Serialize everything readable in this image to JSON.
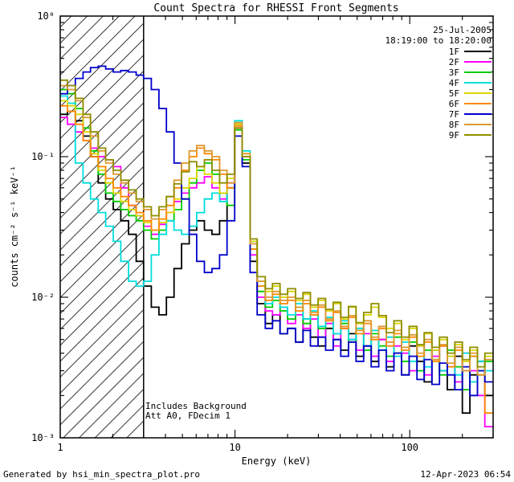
{
  "annotations": {
    "date": "25-Jul-2005",
    "time_range": "18:19:00 to 18:20:00",
    "note_line1": "Includes Background",
    "note_line2": "Att A0, FDecim 1"
  },
  "footer": {
    "left": "Generated by hsi_min_spectra_plot.pro",
    "right": "12-Apr-2023 06:54"
  },
  "chart_data": {
    "type": "line",
    "subtype": "step-histogram",
    "title": "Count Spectra for RHESSI Front Segments",
    "xlabel": "Energy (keV)",
    "ylabel": "counts cm⁻² s⁻¹ keV⁻¹",
    "xscale": "log",
    "yscale": "log",
    "xlim": [
      1,
      300
    ],
    "ylim": [
      0.001,
      1.0
    ],
    "grid": false,
    "legend_position": "top-right",
    "frame_color": "#000000",
    "xticks": [
      {
        "v": 1,
        "label": "1"
      },
      {
        "v": 10,
        "label": "10"
      },
      {
        "v": 100,
        "label": "100"
      }
    ],
    "yticks": [
      {
        "v": 0.001,
        "label": "10⁻³"
      },
      {
        "v": 0.01,
        "label": "10⁻²"
      },
      {
        "v": 0.1,
        "label": "10⁻¹"
      },
      {
        "v": 1,
        "label": "10⁰"
      }
    ],
    "excluded_region": {
      "xmin": 1,
      "xmax": 3.0,
      "style": "diagonal-hatch"
    },
    "energy_bin_edges": [
      1.0,
      1.1,
      1.22,
      1.35,
      1.49,
      1.65,
      1.82,
      2.01,
      2.22,
      2.46,
      2.72,
      3.0,
      3.32,
      3.67,
      4.05,
      4.48,
      4.95,
      5.47,
      6.04,
      6.68,
      7.38,
      8.16,
      9.01,
      9.96,
      11.0,
      12.2,
      13.4,
      14.9,
      16.4,
      18.1,
      20.0,
      22.2,
      24.5,
      27.0,
      29.9,
      33.0,
      36.5,
      40.3,
      44.6,
      49.3,
      54.5,
      60.2,
      66.5,
      73.5,
      81.2,
      89.7,
      99.2,
      110,
      121,
      134,
      148,
      164,
      181,
      200,
      221,
      244,
      269
    ],
    "series": [
      {
        "name": "1F",
        "color": "#000000",
        "values": [
          0.2,
          0.21,
          0.18,
          0.14,
          0.1,
          0.065,
          0.05,
          0.042,
          0.035,
          0.028,
          0.018,
          0.012,
          0.0085,
          0.0075,
          0.01,
          0.016,
          0.024,
          0.03,
          0.035,
          0.03,
          0.028,
          0.035,
          0.06,
          0.17,
          0.09,
          0.018,
          0.009,
          0.0065,
          0.0075,
          0.0055,
          0.006,
          0.0048,
          0.007,
          0.0052,
          0.0045,
          0.006,
          0.005,
          0.0042,
          0.0055,
          0.0038,
          0.0045,
          0.0035,
          0.005,
          0.0032,
          0.004,
          0.0028,
          0.0045,
          0.0035,
          0.0025,
          0.0042,
          0.003,
          0.0022,
          0.0038,
          0.0015,
          0.0028,
          0.0035,
          0.002
        ]
      },
      {
        "name": "2F",
        "color": "#ff00ff",
        "values": [
          0.19,
          0.17,
          0.15,
          0.13,
          0.115,
          0.1,
          0.095,
          0.085,
          0.06,
          0.045,
          0.038,
          0.032,
          0.028,
          0.033,
          0.04,
          0.048,
          0.055,
          0.06,
          0.065,
          0.072,
          0.06,
          0.05,
          0.065,
          0.16,
          0.1,
          0.02,
          0.01,
          0.008,
          0.0075,
          0.0085,
          0.0065,
          0.0075,
          0.006,
          0.007,
          0.0052,
          0.0065,
          0.0045,
          0.006,
          0.005,
          0.0042,
          0.0055,
          0.0038,
          0.005,
          0.0035,
          0.0045,
          0.004,
          0.003,
          0.0045,
          0.0028,
          0.0038,
          0.0045,
          0.0032,
          0.0025,
          0.004,
          0.003,
          0.002,
          0.0012
        ]
      },
      {
        "name": "3F",
        "color": "#00cc00",
        "values": [
          0.3,
          0.28,
          0.22,
          0.16,
          0.11,
          0.075,
          0.055,
          0.048,
          0.042,
          0.038,
          0.035,
          0.03,
          0.026,
          0.03,
          0.035,
          0.042,
          0.05,
          0.065,
          0.08,
          0.09,
          0.075,
          0.055,
          0.045,
          0.155,
          0.095,
          0.022,
          0.011,
          0.0085,
          0.0095,
          0.008,
          0.007,
          0.0085,
          0.0065,
          0.0075,
          0.006,
          0.007,
          0.0055,
          0.0065,
          0.0048,
          0.006,
          0.0042,
          0.0055,
          0.0045,
          0.0038,
          0.0052,
          0.0035,
          0.0048,
          0.003,
          0.0042,
          0.0036,
          0.0028,
          0.0042,
          0.0032,
          0.0022,
          0.0038,
          0.0028,
          0.0035
        ]
      },
      {
        "name": "4F",
        "color": "#00dede",
        "values": [
          0.27,
          0.24,
          0.09,
          0.065,
          0.05,
          0.04,
          0.032,
          0.025,
          0.018,
          0.013,
          0.012,
          0.013,
          0.02,
          0.028,
          0.035,
          0.03,
          0.028,
          0.032,
          0.04,
          0.05,
          0.055,
          0.048,
          0.06,
          0.18,
          0.11,
          0.025,
          0.012,
          0.009,
          0.01,
          0.0085,
          0.0075,
          0.009,
          0.007,
          0.008,
          0.0062,
          0.0072,
          0.0055,
          0.0068,
          0.005,
          0.006,
          0.0045,
          0.0058,
          0.0042,
          0.0052,
          0.0038,
          0.0048,
          0.0035,
          0.0045,
          0.0032,
          0.0042,
          0.003,
          0.0038,
          0.0028,
          0.004,
          0.0025,
          0.0035,
          0.003
        ]
      },
      {
        "name": "5F",
        "color": "#ddd600",
        "values": [
          0.25,
          0.23,
          0.2,
          0.15,
          0.105,
          0.08,
          0.065,
          0.055,
          0.048,
          0.042,
          0.038,
          0.034,
          0.03,
          0.034,
          0.04,
          0.05,
          0.06,
          0.07,
          0.085,
          0.075,
          0.065,
          0.055,
          0.07,
          0.17,
          0.105,
          0.025,
          0.013,
          0.011,
          0.012,
          0.01,
          0.011,
          0.0095,
          0.0105,
          0.0085,
          0.0095,
          0.008,
          0.009,
          0.007,
          0.0085,
          0.0065,
          0.0075,
          0.0085,
          0.0072,
          0.006,
          0.0065,
          0.005,
          0.006,
          0.0045,
          0.0055,
          0.0042,
          0.005,
          0.0038,
          0.0046,
          0.0035,
          0.0042,
          0.003,
          0.0038
        ]
      },
      {
        "name": "6F",
        "color": "#ff8800",
        "values": [
          0.23,
          0.21,
          0.17,
          0.13,
          0.1,
          0.085,
          0.07,
          0.06,
          0.052,
          0.045,
          0.04,
          0.035,
          0.03,
          0.036,
          0.045,
          0.06,
          0.08,
          0.1,
          0.115,
          0.105,
          0.095,
          0.075,
          0.06,
          0.165,
          0.1,
          0.022,
          0.012,
          0.0095,
          0.0105,
          0.009,
          0.0095,
          0.008,
          0.009,
          0.0075,
          0.0085,
          0.0068,
          0.0078,
          0.006,
          0.0072,
          0.0055,
          0.0065,
          0.005,
          0.006,
          0.0045,
          0.0055,
          0.0042,
          0.0052,
          0.0038,
          0.0048,
          0.0035,
          0.0045,
          0.0032,
          0.0042,
          0.003,
          0.0038,
          0.0028,
          0.0015
        ]
      },
      {
        "name": "7F",
        "color": "#0000cc",
        "values": [
          0.28,
          0.32,
          0.36,
          0.4,
          0.43,
          0.44,
          0.42,
          0.4,
          0.41,
          0.4,
          0.38,
          0.36,
          0.3,
          0.22,
          0.15,
          0.09,
          0.05,
          0.028,
          0.018,
          0.015,
          0.016,
          0.02,
          0.035,
          0.14,
          0.085,
          0.015,
          0.0075,
          0.006,
          0.0068,
          0.0055,
          0.006,
          0.0048,
          0.0058,
          0.0045,
          0.0052,
          0.0042,
          0.005,
          0.0038,
          0.0048,
          0.0035,
          0.0045,
          0.0032,
          0.0042,
          0.003,
          0.004,
          0.0028,
          0.0038,
          0.0026,
          0.0036,
          0.0024,
          0.0034,
          0.0028,
          0.0022,
          0.0032,
          0.002,
          0.003,
          0.0025
        ]
      },
      {
        "name": "8F",
        "color": "#dd9933",
        "values": [
          0.32,
          0.3,
          0.25,
          0.19,
          0.14,
          0.11,
          0.09,
          0.075,
          0.065,
          0.055,
          0.048,
          0.042,
          0.036,
          0.042,
          0.052,
          0.068,
          0.09,
          0.11,
          0.12,
          0.11,
          0.1,
          0.08,
          0.065,
          0.175,
          0.105,
          0.024,
          0.013,
          0.01,
          0.011,
          0.0095,
          0.01,
          0.0085,
          0.0095,
          0.0078,
          0.0088,
          0.007,
          0.008,
          0.0062,
          0.0074,
          0.0058,
          0.0068,
          0.0052,
          0.0062,
          0.0048,
          0.0058,
          0.0044,
          0.0054,
          0.004,
          0.005,
          0.0036,
          0.0046,
          0.0034,
          0.0044,
          0.003,
          0.004,
          0.0028,
          0.0036
        ]
      },
      {
        "name": "9F",
        "color": "#8f8f00",
        "values": [
          0.35,
          0.32,
          0.26,
          0.2,
          0.15,
          0.115,
          0.095,
          0.08,
          0.068,
          0.058,
          0.05,
          0.044,
          0.038,
          0.044,
          0.052,
          0.064,
          0.078,
          0.092,
          0.085,
          0.095,
          0.08,
          0.065,
          0.075,
          0.16,
          0.1,
          0.026,
          0.014,
          0.0115,
          0.0125,
          0.0105,
          0.0115,
          0.0098,
          0.0108,
          0.0088,
          0.0098,
          0.0082,
          0.0092,
          0.0072,
          0.0086,
          0.0066,
          0.0078,
          0.009,
          0.0074,
          0.0056,
          0.0068,
          0.0052,
          0.0062,
          0.0046,
          0.0056,
          0.0044,
          0.0052,
          0.004,
          0.0048,
          0.0036,
          0.0044,
          0.0032,
          0.004
        ]
      }
    ]
  }
}
